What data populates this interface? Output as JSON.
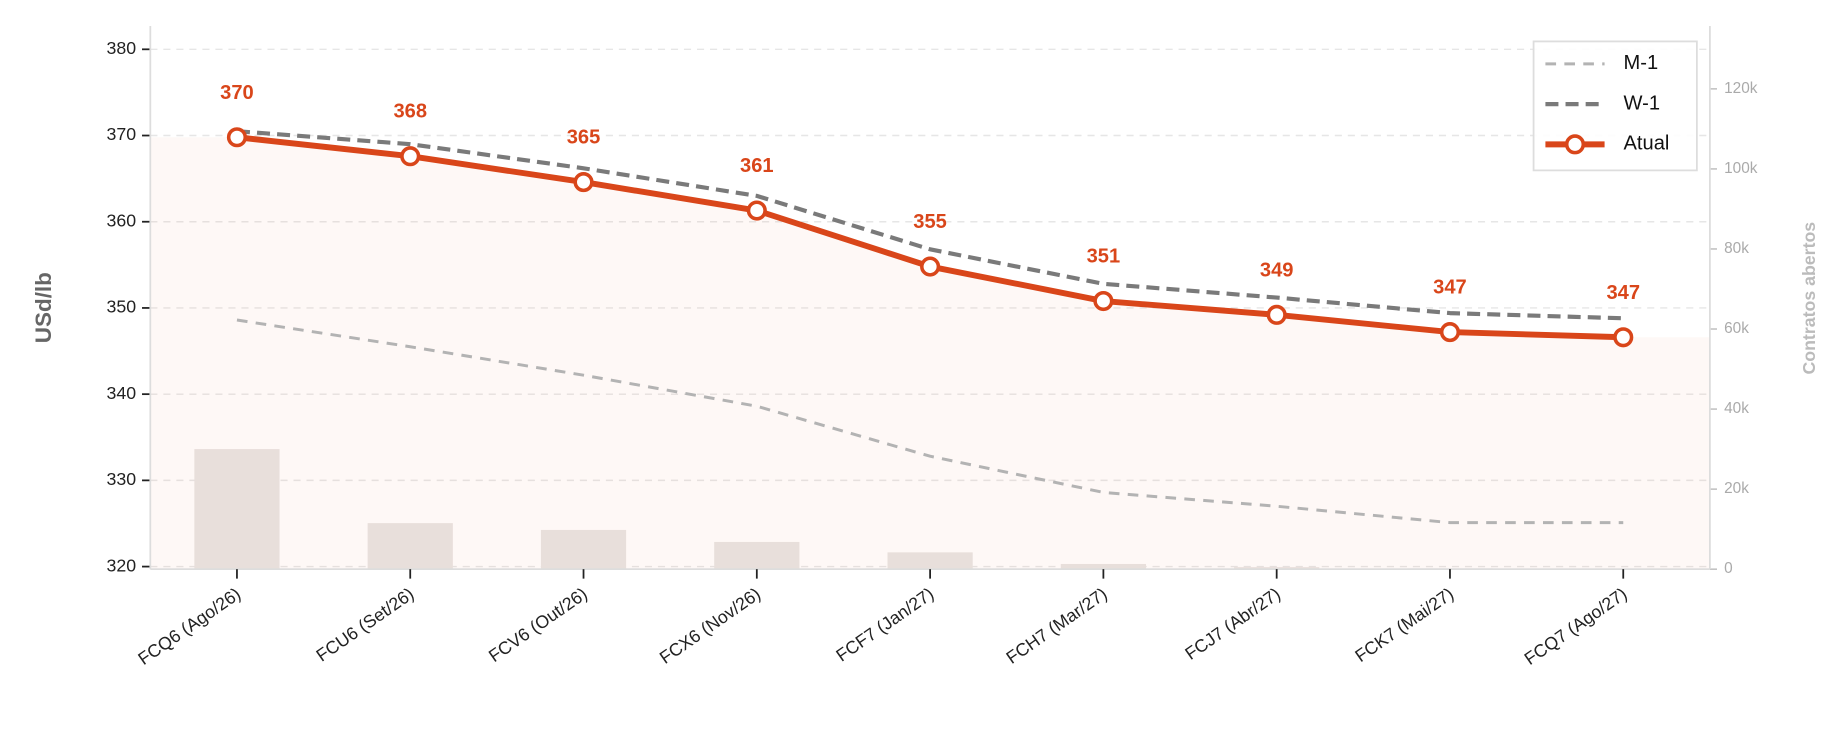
{
  "chart_data": {
    "type": "line",
    "y_label": "USd/lb",
    "y2_label": "Contratos abertos",
    "categories": [
      "FCQ6 (Ago/26)",
      "FCU6 (Set/26)",
      "FCV6 (Out/26)",
      "FCX6 (Nov/26)",
      "FCF7 (Jan/27)",
      "FCH7 (Mar/27)",
      "FCJ7 (Abr/27)",
      "FCK7 (Mai/27)",
      "FCQ7 (Ago/27)"
    ],
    "series": [
      {
        "name": "M-1",
        "color": "#b3b3b3",
        "values": [
          348.6,
          345.5,
          342.2,
          338.6,
          332.8,
          328.6,
          327.0,
          325.1,
          325.1
        ]
      },
      {
        "name": "W-1",
        "color": "#7a7a7a",
        "values": [
          370.5,
          369.0,
          366.2,
          363.0,
          356.8,
          352.8,
          351.2,
          349.4,
          348.8
        ]
      },
      {
        "name": "Atual",
        "color": "#d9461a",
        "values": [
          369.8,
          367.6,
          364.6,
          361.3,
          354.8,
          350.8,
          349.2,
          347.2,
          346.6
        ],
        "value_labels": [
          "370",
          "368",
          "365",
          "361",
          "355",
          "351",
          "349",
          "347",
          "347"
        ]
      },
      {
        "name": "Contratos abertos",
        "type": "bar",
        "axis": "y2",
        "color": "#e9e5e3",
        "values": [
          30000,
          11500,
          9800,
          6800,
          4200,
          1300,
          500,
          200,
          100
        ]
      }
    ],
    "ylim": [
      319.7,
      382.7
    ],
    "yticks": [
      320,
      330,
      340,
      350,
      360,
      370,
      380
    ],
    "y2lim": [
      0,
      135700
    ],
    "y2ticks": [
      0,
      {
        "value": 20000,
        "label": "20k"
      },
      {
        "value": 40000,
        "label": "40k"
      },
      {
        "value": 60000,
        "label": "60k"
      },
      {
        "value": 80000,
        "label": "80k"
      },
      {
        "value": 100000,
        "label": "100k"
      },
      {
        "value": 120000,
        "label": "120k"
      }
    ],
    "grid": true,
    "legend": "upper right"
  }
}
